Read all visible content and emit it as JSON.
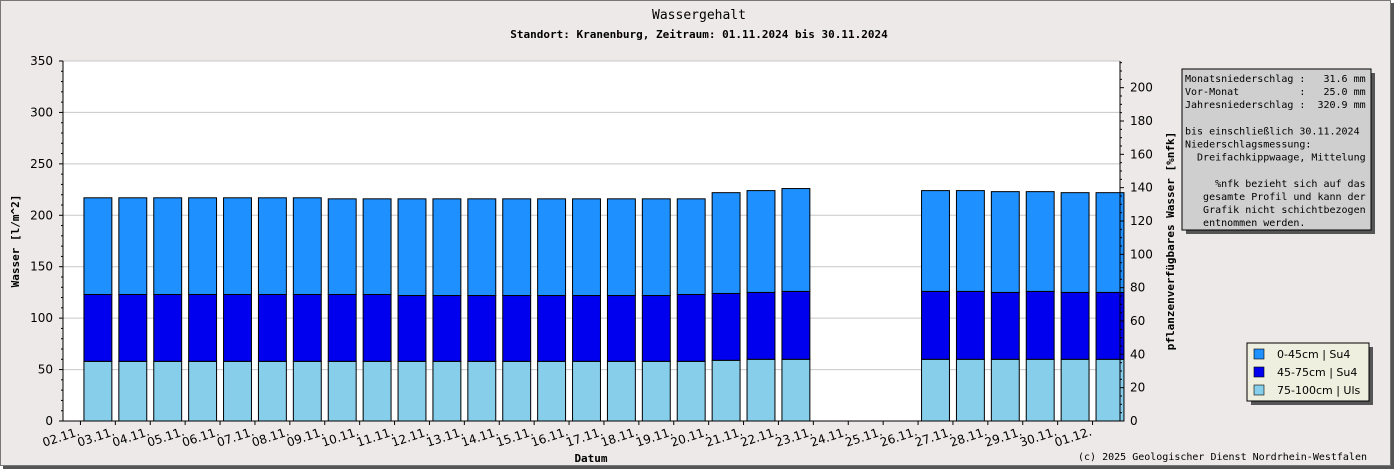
{
  "chart_data": {
    "type": "bar",
    "stacked": true,
    "title": "Wassergehalt",
    "subtitle": "Standort: Kranenburg, Zeitraum: 01.11.2024 bis 30.11.2024",
    "xlabel": "Datum",
    "ylabel": "Wasser [l/m^2]",
    "y2label": "pflanzenverfügbares Wasser [%nfk]",
    "ylim": [
      0,
      350
    ],
    "y2lim": [
      0,
      216
    ],
    "yticks": [
      0,
      50,
      100,
      150,
      200,
      250,
      300,
      350
    ],
    "y2ticks": [
      0,
      20,
      40,
      60,
      80,
      100,
      120,
      140,
      160,
      180,
      200
    ],
    "grid": true,
    "categories": [
      "02.11.",
      "03.11.",
      "04.11.",
      "05.11.",
      "06.11.",
      "07.11.",
      "08.11.",
      "09.11.",
      "10.11.",
      "11.11.",
      "12.11.",
      "13.11.",
      "14.11.",
      "15.11.",
      "16.11.",
      "17.11.",
      "18.11.",
      "19.11.",
      "20.11.",
      "21.11.",
      "22.11.",
      "23.11.",
      "24.11.",
      "25.11.",
      "26.11.",
      "27.11.",
      "28.11.",
      "29.11.",
      "30.11.",
      "01.12."
    ],
    "series": [
      {
        "name": "75-100cm | Uls",
        "color": "#87ceeb",
        "values": [
          58,
          58,
          58,
          58,
          58,
          58,
          58,
          58,
          58,
          58,
          58,
          58,
          58,
          58,
          58,
          58,
          58,
          58,
          59,
          60,
          60,
          null,
          null,
          null,
          60,
          60,
          60,
          60,
          60,
          60
        ]
      },
      {
        "name": "45-75cm | Su4",
        "color": "#0000ee",
        "values": [
          65,
          65,
          65,
          65,
          65,
          65,
          65,
          65,
          65,
          64,
          64,
          64,
          64,
          64,
          64,
          64,
          64,
          65,
          65,
          65,
          66,
          null,
          null,
          null,
          66,
          66,
          65,
          66,
          65,
          65
        ]
      },
      {
        "name": "0-45cm | Su4",
        "color": "#1e90ff",
        "values": [
          94,
          94,
          94,
          94,
          94,
          94,
          94,
          93,
          93,
          94,
          94,
          94,
          94,
          94,
          94,
          94,
          94,
          93,
          98,
          99,
          100,
          null,
          null,
          null,
          98,
          98,
          98,
          97,
          97,
          97
        ]
      }
    ]
  },
  "info_box": {
    "lines": [
      "Monatsniederschlag :   31.6 mm",
      "Vor-Monat          :   25.0 mm",
      "Jahresniederschlag :  320.9 mm",
      "",
      "bis einschließlich 30.11.2024",
      "Niederschlagsmessung:",
      "  Dreifachkippwaage, Mittelung",
      "",
      "     %nfk bezieht sich auf das",
      "   gesamte Profil und kann der",
      "   Grafik nicht schichtbezogen",
      "   entnommen werden."
    ]
  },
  "legend": {
    "placement": "bottom-right",
    "items": [
      {
        "label": "0-45cm | Su4",
        "color": "#1e90ff"
      },
      {
        "label": "45-75cm | Su4",
        "color": "#0000ee"
      },
      {
        "label": "75-100cm | Uls",
        "color": "#87ceeb"
      }
    ]
  },
  "copyright": "(c) 2025 Geologischer Dienst Nordrhein-Westfalen"
}
